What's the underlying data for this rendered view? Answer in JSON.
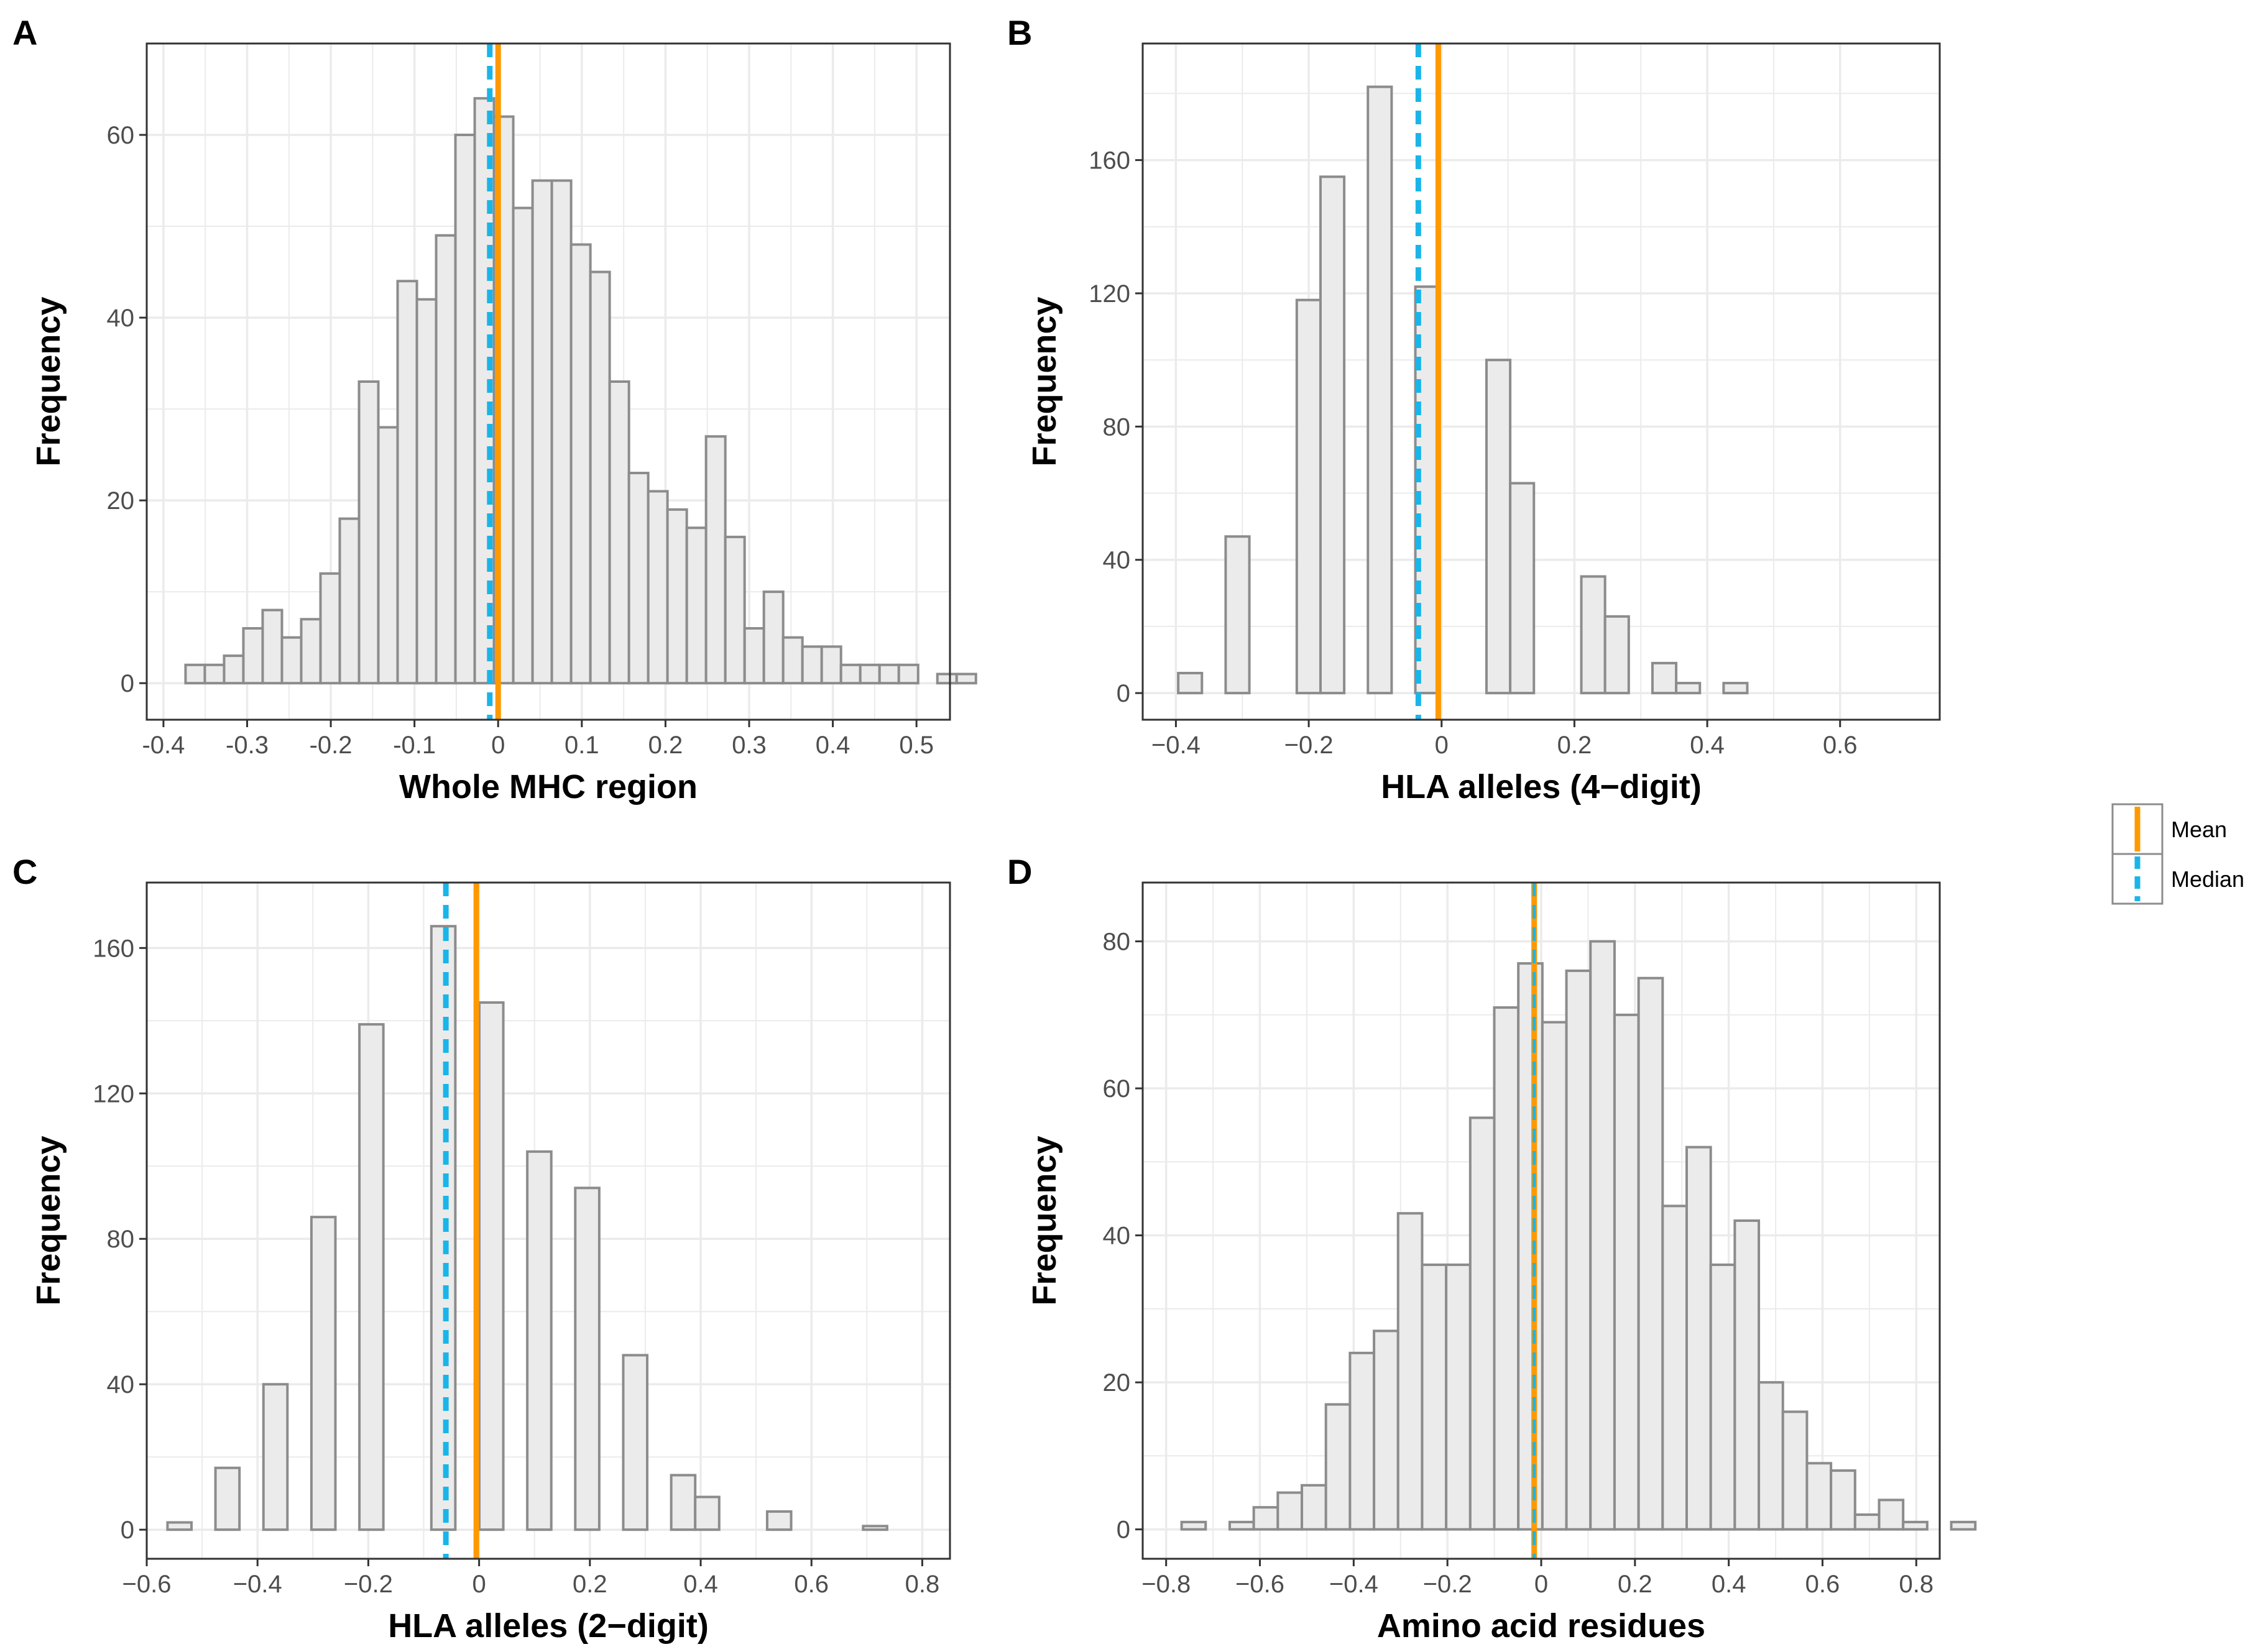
{
  "figure": {
    "ylabel_all": "Frequency"
  },
  "legend": {
    "entries": [
      {
        "label": "Mean",
        "color": "#FF9900",
        "style": "solid"
      },
      {
        "label": "Median",
        "color": "#1AB5E8",
        "style": "dashed"
      }
    ]
  },
  "colors": {
    "bar_fill": "#EBEBEB",
    "bar_stroke": "#8C8C8C",
    "grid": "#EBEBEB",
    "panel_border": "#333333",
    "mean": "#FF9900",
    "median": "#1AB5E8"
  },
  "chart_data": [
    {
      "panel": "A",
      "type": "histogram",
      "xlabel": "Whole MHC region",
      "ylabel": "Frequency",
      "xlim": [
        -0.42,
        0.54
      ],
      "ylim": [
        -4,
        70
      ],
      "xticks": [
        -0.4,
        -0.3,
        -0.2,
        -0.1,
        0,
        0.1,
        0.2,
        0.3,
        0.4,
        0.5
      ],
      "xtick_labels": [
        "-0.4",
        "-0.3",
        "-0.2",
        "-0.1",
        "0",
        "0.1",
        "0.2",
        "0.3",
        "0.4",
        "0.5"
      ],
      "yticks": [
        0,
        20,
        40,
        60
      ],
      "ytick_labels": [
        "0",
        "20",
        "40",
        "60"
      ],
      "bin_start": -0.3736,
      "bin_width": 0.02304,
      "values": [
        2,
        2,
        3,
        6,
        8,
        5,
        7,
        12,
        18,
        33,
        28,
        44,
        42,
        49,
        60,
        64,
        62,
        52,
        55,
        55,
        48,
        45,
        33,
        23,
        21,
        19,
        17,
        27,
        16,
        6,
        10,
        5,
        4,
        4,
        2,
        2,
        2,
        2,
        0,
        1,
        1
      ],
      "mean": 0.0,
      "median": -0.01
    },
    {
      "panel": "B",
      "type": "histogram",
      "xlabel": "HLA alleles (4−digit)",
      "ylabel": "Frequency",
      "xlim": [
        -0.45,
        0.75
      ],
      "ylim": [
        -8,
        195
      ],
      "xticks": [
        -0.4,
        -0.2,
        0,
        0.2,
        0.4,
        0.6
      ],
      "xtick_labels": [
        "−0.4",
        "−0.2",
        "0",
        "0.2",
        "0.4",
        "0.6"
      ],
      "yticks": [
        0,
        40,
        80,
        120,
        160
      ],
      "ytick_labels": [
        "0",
        "40",
        "80",
        "120",
        "160"
      ],
      "bin_start": -0.3965,
      "bin_width": 0.0357,
      "values": [
        6,
        0,
        47,
        0,
        0,
        118,
        155,
        0,
        182,
        0,
        122,
        0,
        0,
        100,
        63,
        0,
        0,
        35,
        23,
        0,
        9,
        3,
        0,
        3
      ],
      "mean": -0.005,
      "median": -0.035
    },
    {
      "panel": "C",
      "type": "histogram",
      "xlabel": "HLA alleles (2−digit)",
      "ylabel": "Frequency",
      "xlim": [
        -0.6,
        0.85
      ],
      "ylim": [
        -8,
        178
      ],
      "xticks": [
        -0.6,
        -0.4,
        -0.2,
        0,
        0.2,
        0.4,
        0.6,
        0.8
      ],
      "xtick_labels": [
        "−0.6",
        "−0.4",
        "−0.2",
        "0",
        "0.2",
        "0.4",
        "0.6",
        "0.8"
      ],
      "yticks": [
        0,
        40,
        80,
        120,
        160
      ],
      "ytick_labels": [
        "0",
        "40",
        "80",
        "120",
        "160"
      ],
      "bin_start": -0.5625,
      "bin_width": 0.0433,
      "values": [
        2,
        0,
        17,
        0,
        40,
        0,
        86,
        0,
        139,
        0,
        0,
        166,
        0,
        145,
        0,
        104,
        0,
        94,
        0,
        48,
        0,
        15,
        9,
        0,
        0,
        5,
        0,
        0,
        0,
        1
      ],
      "mean": -0.005,
      "median": -0.06
    },
    {
      "panel": "D",
      "type": "histogram",
      "xlabel": "Amino acid residues",
      "ylabel": "Frequency",
      "xlim": [
        -0.85,
        0.85
      ],
      "ylim": [
        -4,
        88
      ],
      "xticks": [
        -0.8,
        -0.6,
        -0.4,
        -0.2,
        0,
        0.2,
        0.4,
        0.6,
        0.8
      ],
      "xtick_labels": [
        "−0.8",
        "−0.6",
        "−0.4",
        "−0.2",
        "0",
        "0.2",
        "0.4",
        "0.6",
        "0.8"
      ],
      "yticks": [
        0,
        20,
        40,
        60,
        80
      ],
      "ytick_labels": [
        "0",
        "20",
        "40",
        "60",
        "80"
      ],
      "bin_start": -0.767,
      "bin_width": 0.0513,
      "values": [
        1,
        0,
        1,
        3,
        5,
        6,
        17,
        24,
        27,
        43,
        36,
        36,
        56,
        71,
        77,
        69,
        76,
        80,
        70,
        75,
        44,
        52,
        36,
        42,
        20,
        16,
        9,
        8,
        2,
        4,
        1,
        0,
        1
      ],
      "mean": -0.015,
      "median": -0.015
    }
  ]
}
